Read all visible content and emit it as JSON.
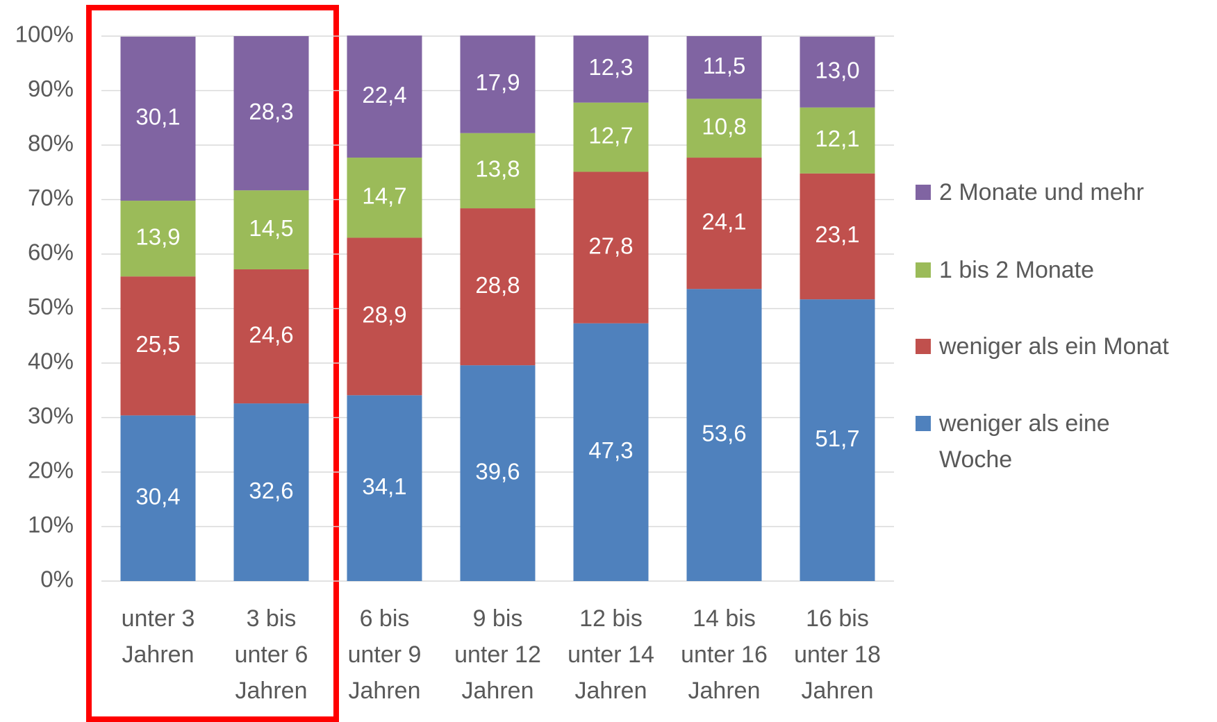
{
  "chart_data": {
    "type": "stacked_bar",
    "categories": [
      [
        "unter 3",
        "Jahren"
      ],
      [
        "3 bis",
        "unter 6",
        "Jahren"
      ],
      [
        "6 bis",
        "unter 9",
        "Jahren"
      ],
      [
        "9 bis",
        "unter 12",
        "Jahren"
      ],
      [
        "12 bis",
        "unter 14",
        "Jahren"
      ],
      [
        "14 bis",
        "unter 16",
        "Jahren"
      ],
      [
        "16 bis",
        "unter 18",
        "Jahren"
      ]
    ],
    "series": [
      {
        "name": "weniger als eine Woche",
        "color": "#4f81bd",
        "values": [
          30.4,
          32.6,
          34.1,
          39.6,
          47.3,
          53.6,
          51.7
        ],
        "value_labels": [
          "30,4",
          "32,6",
          "34,1",
          "39,6",
          "47,3",
          "53,6",
          "51,7"
        ]
      },
      {
        "name": "weniger als ein Monat",
        "color": "#c0504d",
        "values": [
          25.5,
          24.6,
          28.9,
          28.8,
          27.8,
          24.1,
          23.1
        ],
        "value_labels": [
          "25,5",
          "24,6",
          "28,9",
          "28,8",
          "27,8",
          "24,1",
          "23,1"
        ]
      },
      {
        "name": "1 bis 2 Monate",
        "color": "#9bbb59",
        "values": [
          13.9,
          14.5,
          14.7,
          13.8,
          12.7,
          10.8,
          12.1
        ],
        "value_labels": [
          "13,9",
          "14,5",
          "14,7",
          "13,8",
          "12,7",
          "10,8",
          "12,1"
        ]
      },
      {
        "name": "2 Monate und mehr",
        "color": "#8064a2",
        "values": [
          30.1,
          28.3,
          22.4,
          17.9,
          12.3,
          11.5,
          13.0
        ],
        "value_labels": [
          "30,1",
          "28,3",
          "22,4",
          "17,9",
          "12,3",
          "11,5",
          "13,0"
        ]
      }
    ],
    "ylim": [
      0,
      100
    ],
    "yticks": [
      {
        "value": 0,
        "label": "0%"
      },
      {
        "value": 10,
        "label": "10%"
      },
      {
        "value": 20,
        "label": "20%"
      },
      {
        "value": 30,
        "label": "30%"
      },
      {
        "value": 40,
        "label": "40%"
      },
      {
        "value": 50,
        "label": "50%"
      },
      {
        "value": 60,
        "label": "60%"
      },
      {
        "value": 70,
        "label": "70%"
      },
      {
        "value": 80,
        "label": "80%"
      },
      {
        "value": 90,
        "label": "90%"
      },
      {
        "value": 100,
        "label": "100%"
      }
    ],
    "grid": true,
    "legend": "right"
  }
}
